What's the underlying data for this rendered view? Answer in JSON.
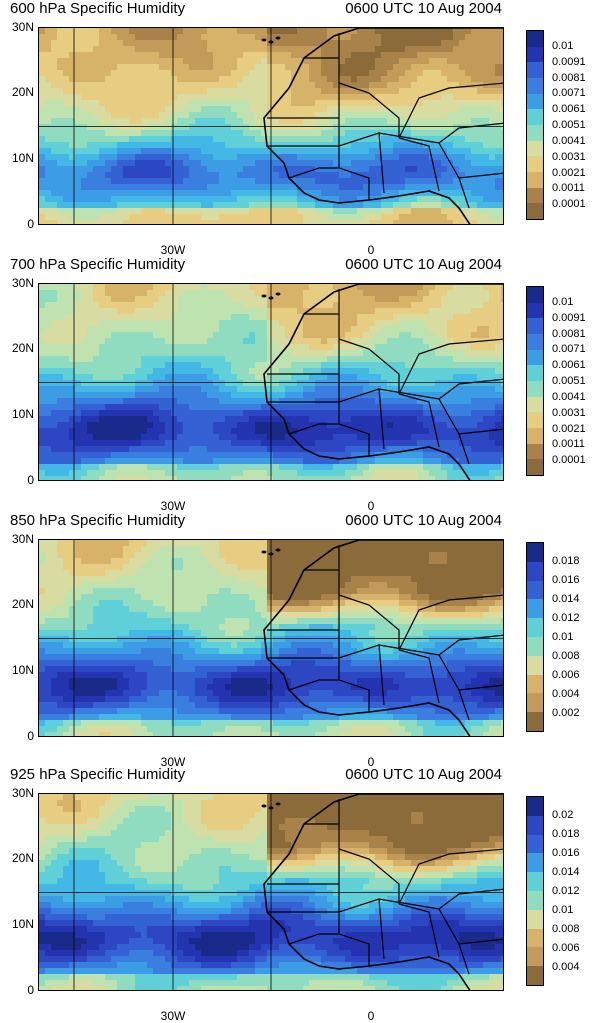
{
  "colors": {
    "scale": [
      "#8b6b3a",
      "#a9824a",
      "#c29a5a",
      "#d7b36a",
      "#e6cd82",
      "#d8dca0",
      "#bfe3b0",
      "#8fdcc0",
      "#5fd0d8",
      "#43b8e6",
      "#3c9ce6",
      "#3a7fe0",
      "#3462d4",
      "#2c46c4",
      "#2434b0",
      "#1a2a8a"
    ]
  },
  "panels": [
    {
      "title_left": "600 hPa Specific Humidity",
      "title_right": "0600 UTC 10 Aug 2004",
      "lat_labels": [
        "30N",
        "20N",
        "10N",
        "0"
      ],
      "lon_labels": [
        "30W",
        "0"
      ],
      "colorbar": [
        "0.01",
        "0.0091",
        "0.0081",
        "0.0071",
        "0.0061",
        "0.0051",
        "0.0041",
        "0.0031",
        "0.0021",
        "0.0011",
        "0.0001"
      ]
    },
    {
      "title_left": "700 hPa Specific Humidity",
      "title_right": "0600 UTC 10 Aug 2004",
      "lat_labels": [
        "30N",
        "20N",
        "10N",
        "0"
      ],
      "lon_labels": [
        "30W",
        "0"
      ],
      "colorbar": [
        "0.01",
        "0.0091",
        "0.0081",
        "0.0071",
        "0.0061",
        "0.0051",
        "0.0041",
        "0.0031",
        "0.0021",
        "0.0011",
        "0.0001"
      ]
    },
    {
      "title_left": "850 hPa Specific Humidity",
      "title_right": "0600 UTC 10 Aug 2004",
      "lat_labels": [
        "30N",
        "20N",
        "10N",
        "0"
      ],
      "lon_labels": [
        "30W",
        "0"
      ],
      "colorbar": [
        "0.018",
        "0.016",
        "0.014",
        "0.012",
        "0.01",
        "0.008",
        "0.006",
        "0.004",
        "0.002"
      ]
    },
    {
      "title_left": "925 hPa Specific Humidity",
      "title_right": "0600 UTC 10 Aug 2004",
      "lat_labels": [
        "30N",
        "20N",
        "10N",
        "0"
      ],
      "lon_labels": [
        "30W",
        "0"
      ],
      "colorbar": [
        "0.02",
        "0.018",
        "0.016",
        "0.014",
        "0.012",
        "0.01",
        "0.008",
        "0.006",
        "0.004"
      ]
    }
  ]
}
